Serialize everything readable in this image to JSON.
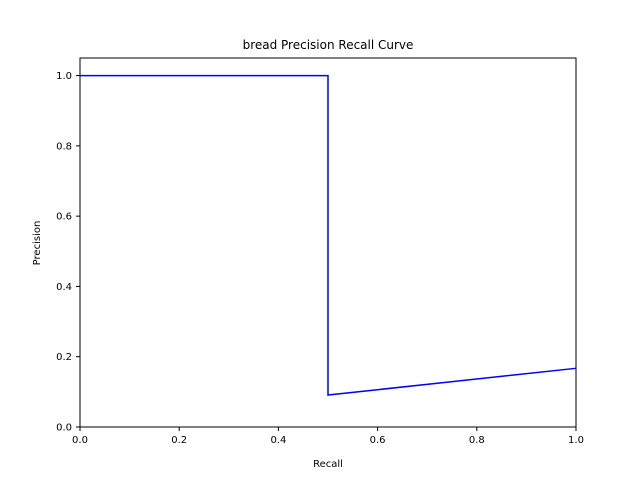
{
  "chart_data": {
    "type": "line",
    "title": "bread Precision Recall Curve",
    "xlabel": "Recall",
    "ylabel": "Precision",
    "xlim": [
      0.0,
      1.0
    ],
    "ylim": [
      0.0,
      1.05
    ],
    "xticks": [
      0.0,
      0.2,
      0.4,
      0.6,
      0.8,
      1.0
    ],
    "yticks": [
      0.0,
      0.2,
      0.4,
      0.6,
      0.8,
      1.0
    ],
    "xtick_labels": [
      "0.0",
      "0.2",
      "0.4",
      "0.6",
      "0.8",
      "1.0"
    ],
    "ytick_labels": [
      "0.0",
      "0.2",
      "0.4",
      "0.6",
      "0.8",
      "1.0"
    ],
    "grid": false,
    "series": [
      {
        "color": "#0000ff",
        "x": [
          0.0,
          0.5,
          0.5,
          1.0
        ],
        "y": [
          1.0,
          1.0,
          0.091,
          0.167
        ]
      }
    ]
  }
}
